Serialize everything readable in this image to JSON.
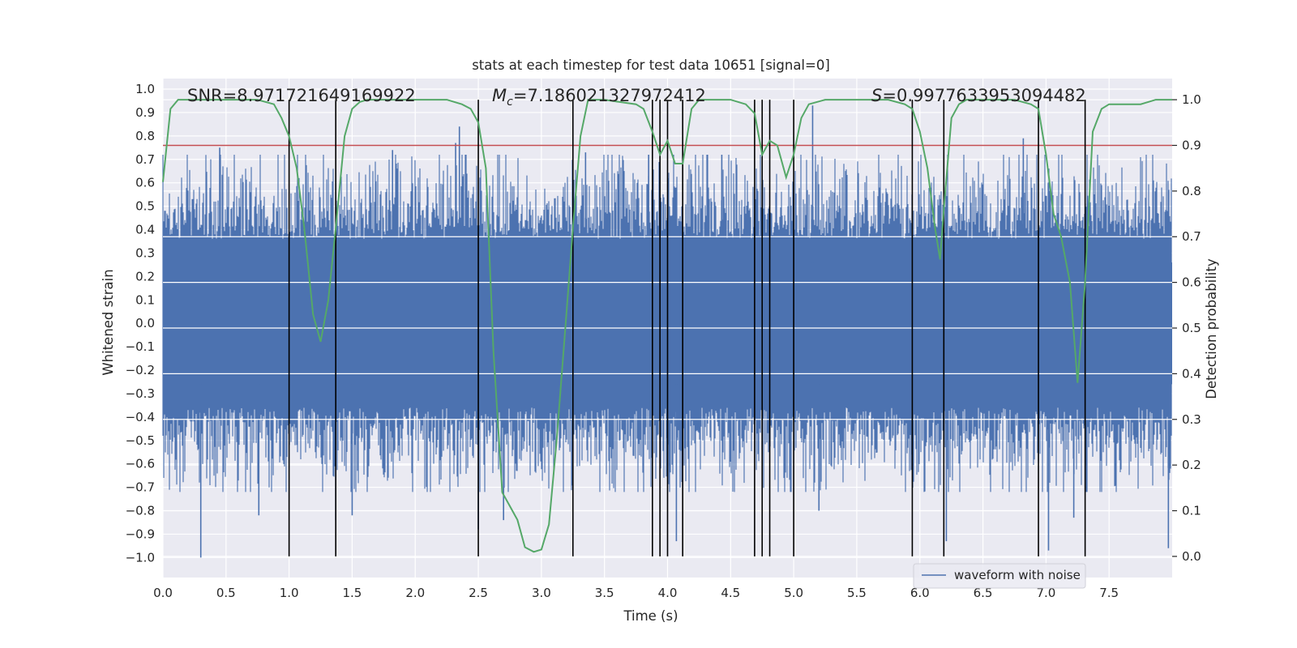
{
  "chart_data": {
    "type": "line",
    "title": "stats at each timestep for test data 10651 [signal=0]",
    "xlabel": "Time (s)",
    "ylabel_left": "Whitened strain",
    "ylabel_right": "Detection probability",
    "xlim": [
      0,
      8
    ],
    "ylim_left": [
      -1.0853,
      1.045
    ],
    "ylim_right": [
      -0.0463,
      1.0463
    ],
    "grid": true,
    "legend": {
      "position": "bottom-right",
      "entries": [
        "waveform with noise"
      ]
    },
    "x_ticks": [
      "0.0",
      "0.5",
      "1.0",
      "1.5",
      "2.0",
      "2.5",
      "3.0",
      "3.5",
      "4.0",
      "4.5",
      "5.0",
      "5.5",
      "6.0",
      "6.5",
      "7.0",
      "7.5"
    ],
    "x_tick_values": [
      0,
      0.5,
      1,
      1.5,
      2,
      2.5,
      3,
      3.5,
      4,
      4.5,
      5,
      5.5,
      6,
      6.5,
      7,
      7.5
    ],
    "y_ticks_left": [
      "1.0",
      "0.9",
      "0.8",
      "0.7",
      "0.6",
      "0.5",
      "0.4",
      "0.3",
      "0.2",
      "0.1",
      "0.0",
      "−0.1",
      "−0.2",
      "−0.3",
      "−0.4",
      "−0.5",
      "−0.6",
      "−0.7",
      "−0.8",
      "−0.9",
      "−1.0"
    ],
    "y_tick_values_left": [
      1,
      0.9,
      0.8,
      0.7,
      0.6,
      0.5,
      0.4,
      0.3,
      0.2,
      0.1,
      0,
      -0.1,
      -0.2,
      -0.3,
      -0.4,
      -0.5,
      -0.6,
      -0.7,
      -0.8,
      -0.9,
      -1.0
    ],
    "y_ticks_right": [
      "1.0",
      "0.9",
      "0.8",
      "0.7",
      "0.6",
      "0.5",
      "0.4",
      "0.3",
      "0.2",
      "0.1",
      "0.0"
    ],
    "y_tick_values_right": [
      1,
      0.9,
      0.8,
      0.7,
      0.6,
      0.5,
      0.4,
      0.3,
      0.2,
      0.1,
      0
    ],
    "annotations": [
      {
        "label_prefix": "SNR",
        "value": "8.971721649169922",
        "text": "SNR=8.971721649169922"
      },
      {
        "label_prefix": "M",
        "subscript": "c",
        "value": "7.186021327972412",
        "text": "Mc=7.186021327972412"
      },
      {
        "label_prefix": "S",
        "value": "0.9977633953094482",
        "text": "S=0.9977633953094482"
      }
    ],
    "threshold_line": {
      "value": 0.9,
      "axis": "right",
      "color": "#c44e52"
    },
    "boundary_lines_x": [
      1.0,
      1.37,
      2.5,
      3.25,
      3.88,
      3.94,
      4.0,
      4.12,
      4.69,
      4.75,
      4.81,
      5.0,
      5.94,
      6.19,
      6.94,
      7.31
    ],
    "series": [
      {
        "name": "waveform with noise",
        "axis": "left",
        "color": "#4c72b0",
        "envelope_note": "dense noise; typical amplitude about ±0.45 with spikes",
        "spikes": [
          [
            0.3,
            -1.0
          ],
          [
            0.45,
            0.75
          ],
          [
            0.76,
            -0.82
          ],
          [
            1.37,
            -0.84
          ],
          [
            1.5,
            -0.82
          ],
          [
            1.82,
            0.74
          ],
          [
            2.32,
            0.77
          ],
          [
            2.35,
            0.84
          ],
          [
            2.5,
            -0.88
          ],
          [
            2.7,
            -0.84
          ],
          [
            3.35,
            0.73
          ],
          [
            3.85,
            0.72
          ],
          [
            4.07,
            -0.93
          ],
          [
            4.43,
            0.72
          ],
          [
            5.15,
            0.93
          ],
          [
            5.2,
            -0.8
          ],
          [
            6.21,
            -0.93
          ],
          [
            6.82,
            0.79
          ],
          [
            7.02,
            -0.97
          ],
          [
            7.22,
            -0.83
          ],
          [
            7.97,
            -0.96
          ]
        ]
      },
      {
        "name": "detection probability",
        "axis": "right",
        "color": "#55a868",
        "x": [
          0,
          0.06,
          0.12,
          0.25,
          0.5,
          0.75,
          0.88,
          0.94,
          1.0,
          1.06,
          1.12,
          1.19,
          1.25,
          1.31,
          1.37,
          1.44,
          1.5,
          1.56,
          1.62,
          2.0,
          2.25,
          2.37,
          2.44,
          2.5,
          2.56,
          2.62,
          2.69,
          2.75,
          2.81,
          2.87,
          2.94,
          3.0,
          3.06,
          3.12,
          3.19,
          3.25,
          3.31,
          3.37,
          3.44,
          3.5,
          3.62,
          3.75,
          3.81,
          3.88,
          3.94,
          4.0,
          4.06,
          4.12,
          4.19,
          4.25,
          4.5,
          4.62,
          4.69,
          4.75,
          4.81,
          4.87,
          4.94,
          5.0,
          5.06,
          5.12,
          5.25,
          5.5,
          5.75,
          5.88,
          5.94,
          6.0,
          6.06,
          6.12,
          6.16,
          6.19,
          6.25,
          6.31,
          6.37,
          6.5,
          6.75,
          6.88,
          6.94,
          7.0,
          7.06,
          7.12,
          7.19,
          7.25,
          7.31,
          7.37,
          7.44,
          7.5,
          7.75,
          7.81,
          7.87,
          7.94,
          8.0
        ],
        "y": [
          0.82,
          0.98,
          1.0,
          1.0,
          1.0,
          1.0,
          0.99,
          0.96,
          0.92,
          0.85,
          0.72,
          0.53,
          0.47,
          0.56,
          0.72,
          0.92,
          0.98,
          0.995,
          1.0,
          1.0,
          1.0,
          0.99,
          0.98,
          0.95,
          0.85,
          0.45,
          0.14,
          0.11,
          0.08,
          0.02,
          0.01,
          0.015,
          0.07,
          0.25,
          0.5,
          0.72,
          0.92,
          1.0,
          1.0,
          1.0,
          0.995,
          0.99,
          0.98,
          0.93,
          0.88,
          0.91,
          0.86,
          0.86,
          0.98,
          1.0,
          1.0,
          0.99,
          0.97,
          0.88,
          0.91,
          0.9,
          0.83,
          0.88,
          0.96,
          0.99,
          1.0,
          1.0,
          1.0,
          0.99,
          0.98,
          0.93,
          0.85,
          0.72,
          0.65,
          0.76,
          0.96,
          0.99,
          1.0,
          1.0,
          1.0,
          0.99,
          0.98,
          0.88,
          0.75,
          0.7,
          0.6,
          0.38,
          0.6,
          0.93,
          0.98,
          0.99,
          0.99,
          0.995,
          1.0,
          1.0,
          1.0
        ]
      }
    ]
  }
}
